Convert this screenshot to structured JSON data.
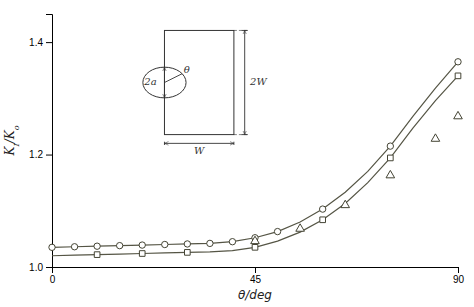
{
  "chart_data": {
    "type": "line",
    "xlabel": "θ/deg",
    "ylabel": "KI/Ko",
    "xlim": [
      0,
      90
    ],
    "ylim": [
      1.0,
      1.45
    ],
    "xticks": [
      0,
      45,
      90
    ],
    "yticks": [
      {
        "value": 1.0,
        "label": "1.0"
      },
      1.2,
      1.4
    ],
    "grid": false,
    "series": [
      {
        "type": "line",
        "x": [
          0,
          5,
          10,
          15,
          20,
          25,
          30,
          35,
          40,
          45,
          50,
          55,
          60,
          65,
          70,
          75,
          80,
          85,
          90
        ],
        "values": [
          1.035,
          1.036,
          1.037,
          1.038,
          1.039,
          1.04,
          1.041,
          1.042,
          1.045,
          1.052,
          1.063,
          1.08,
          1.103,
          1.133,
          1.17,
          1.215,
          1.268,
          1.318,
          1.365
        ]
      },
      {
        "type": "line",
        "x": [
          0,
          5,
          10,
          15,
          20,
          25,
          30,
          35,
          40,
          45,
          50,
          55,
          60,
          65,
          70,
          75,
          80,
          85,
          90
        ],
        "values": [
          1.02,
          1.021,
          1.022,
          1.023,
          1.024,
          1.025,
          1.026,
          1.027,
          1.029,
          1.035,
          1.046,
          1.062,
          1.084,
          1.113,
          1.15,
          1.194,
          1.247,
          1.296,
          1.34
        ]
      },
      {
        "type": "scatter",
        "marker": "circle",
        "x": [
          0,
          5,
          10,
          15,
          20,
          25,
          30,
          35,
          40,
          45,
          50,
          60,
          75,
          90
        ],
        "values": [
          1.035,
          1.036,
          1.037,
          1.038,
          1.039,
          1.04,
          1.041,
          1.042,
          1.045,
          1.052,
          1.063,
          1.103,
          1.215,
          1.365
        ]
      },
      {
        "type": "scatter",
        "marker": "square",
        "x": [
          10,
          20,
          30,
          45,
          60,
          75,
          90
        ],
        "values": [
          1.022,
          1.024,
          1.026,
          1.035,
          1.084,
          1.194,
          1.34
        ]
      },
      {
        "type": "scatter",
        "marker": "triangle",
        "x": [
          45,
          55,
          65,
          75,
          85,
          90
        ],
        "values": [
          1.046,
          1.068,
          1.11,
          1.163,
          1.228,
          1.268
        ]
      }
    ],
    "annotations": [
      {
        "text": "θ"
      },
      {
        "text": "2a"
      },
      {
        "text": "W"
      },
      {
        "text": "2W"
      }
    ]
  }
}
